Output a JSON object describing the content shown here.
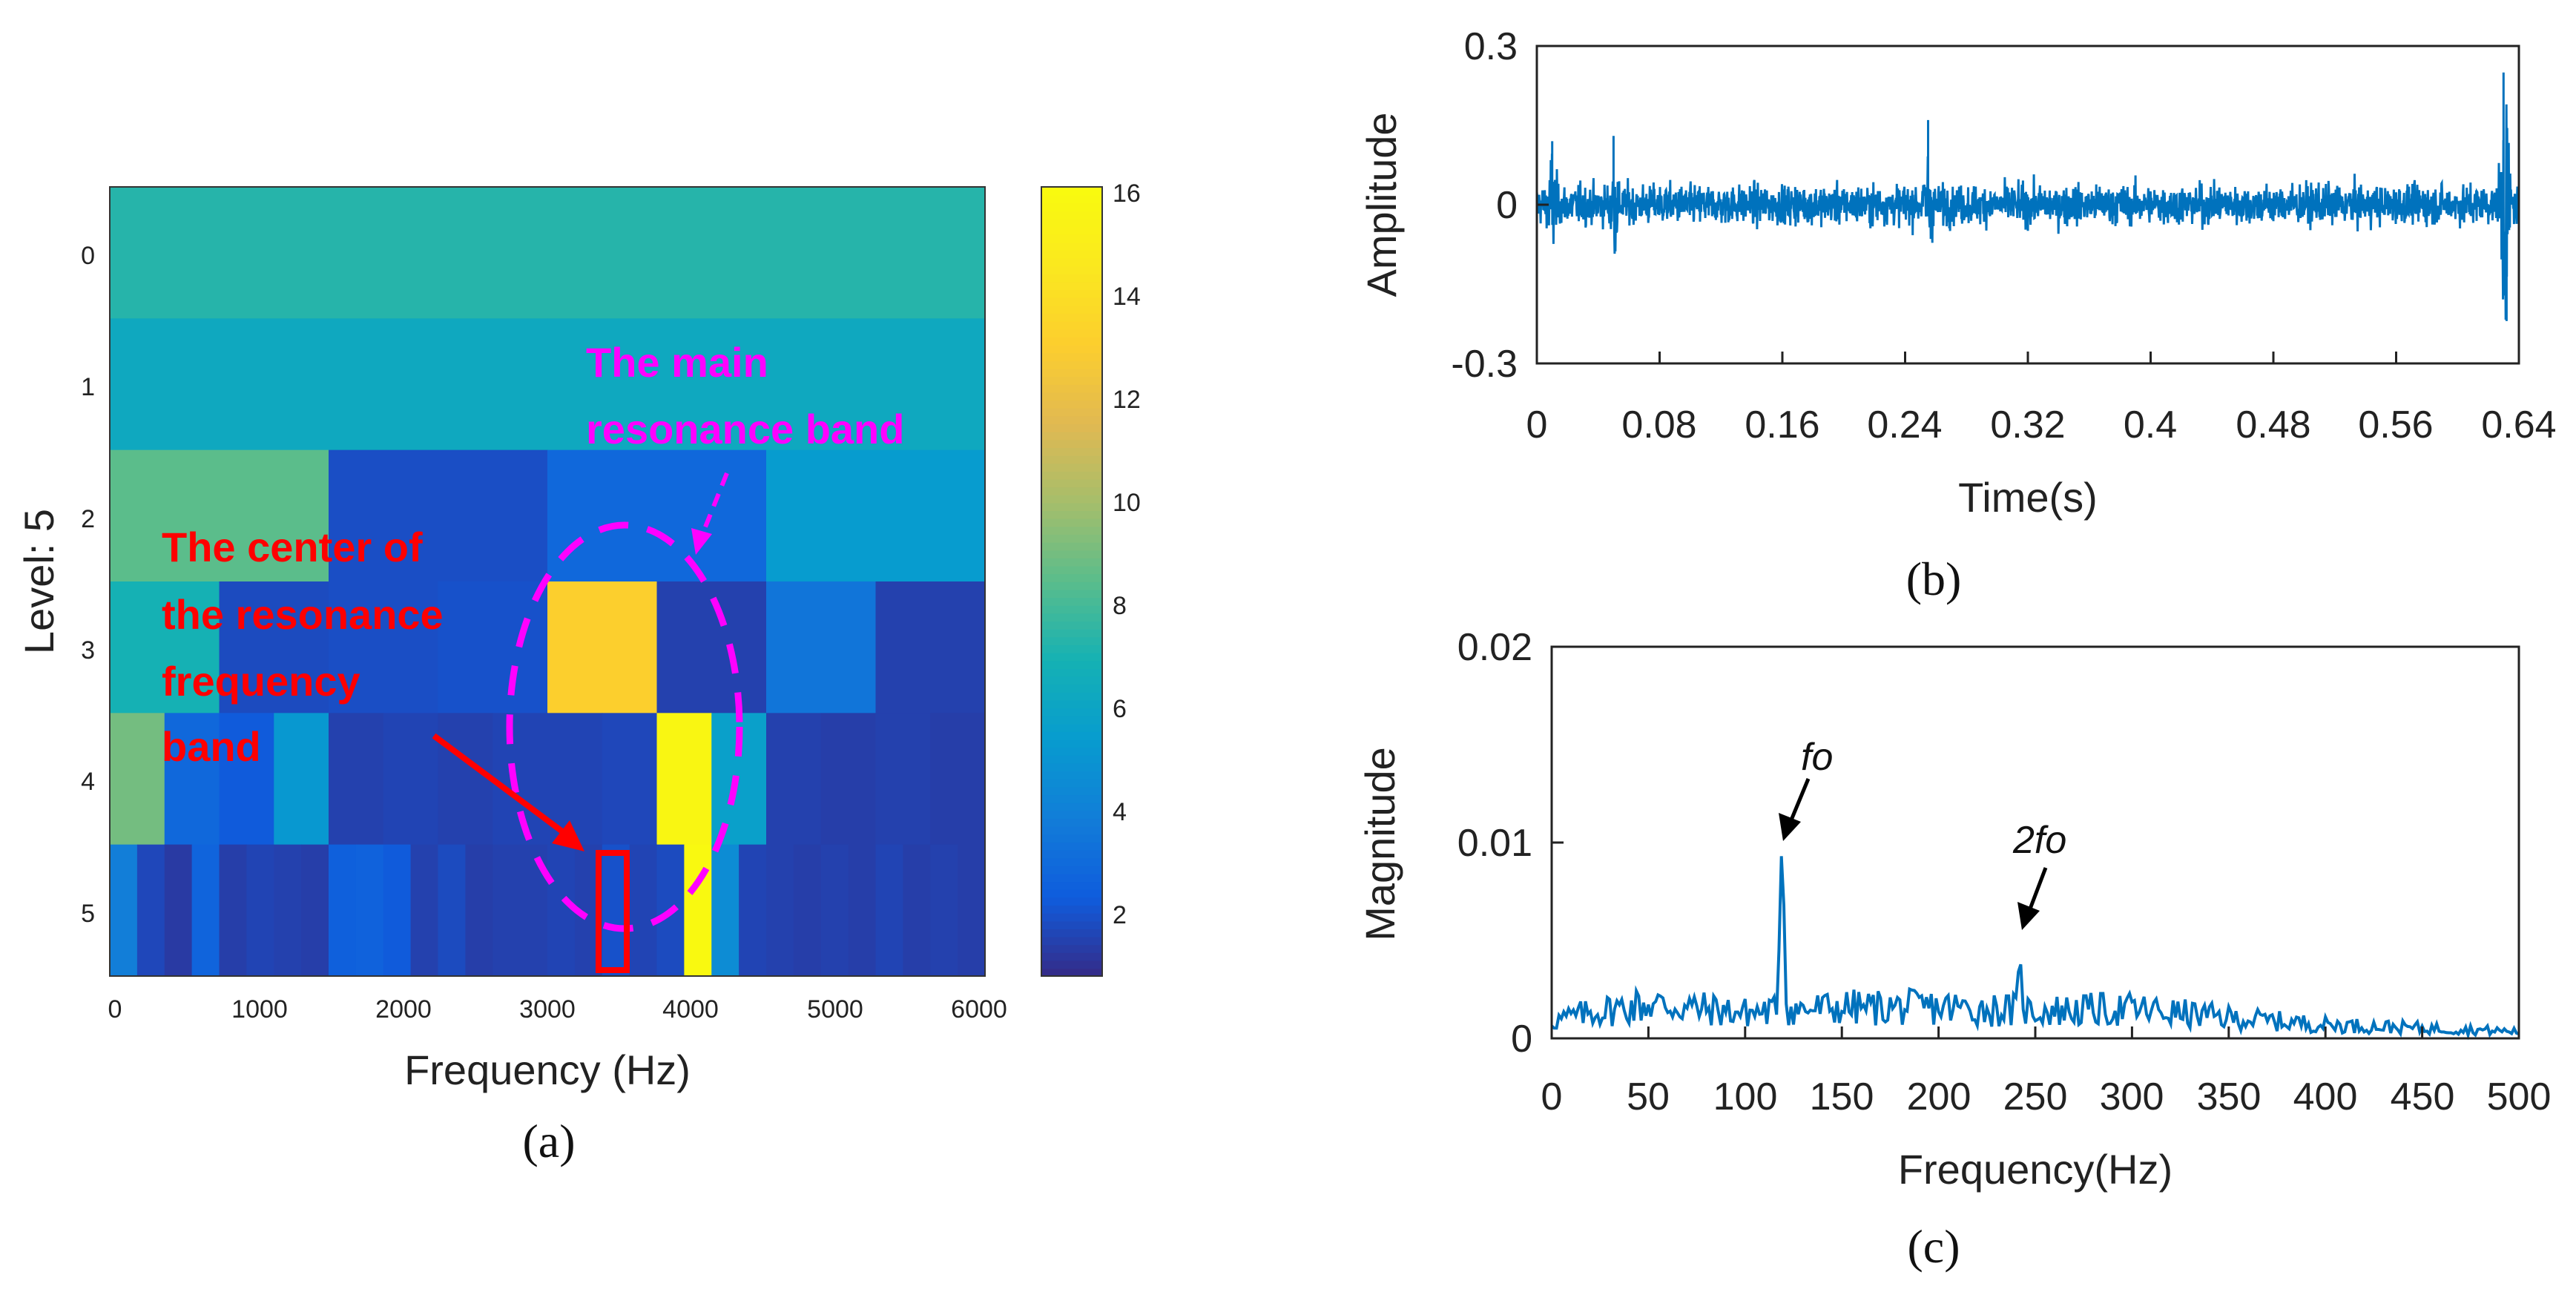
{
  "colors": {
    "signal": "#0072BD",
    "red": "#ff0000",
    "magenta": "#ff00ff",
    "axis": "#222222"
  },
  "chart_data": [
    {
      "panel": "(a)",
      "type": "heatmap",
      "title": "",
      "xlabel": "Frequency (Hz)",
      "ylabel": "Level: 5",
      "xlim": [
        -50,
        6050
      ],
      "xticks": [
        "0",
        "1000",
        "2000",
        "3000",
        "4000",
        "5000",
        "6000"
      ],
      "yticks": [
        "0",
        "1",
        "2",
        "3",
        "4",
        "5"
      ],
      "colorbar": {
        "min": 0.7,
        "max": 16,
        "ticks": [
          "2",
          "4",
          "6",
          "8",
          "10",
          "12",
          "14",
          "16"
        ]
      },
      "levels": [
        {
          "level": 0,
          "values": [
            7.2
          ]
        },
        {
          "level": 1,
          "values": [
            6.2,
            6.2
          ]
        },
        {
          "level": 2,
          "values": [
            8.4,
            1.8,
            2.8,
            5.3
          ]
        },
        {
          "level": 3,
          "values": [
            6.8,
            1.7,
            1.8,
            1.9,
            13.0,
            1.4,
            3.4,
            1.4
          ]
        },
        {
          "level": 4,
          "values": [
            8.9,
            2.8,
            2.2,
            5.1,
            1.4,
            1.5,
            1.4,
            1.5,
            1.5,
            1.6,
            15.6,
            5.6,
            1.4,
            1.3,
            1.4,
            1.3
          ]
        },
        {
          "level": 5,
          "values": [
            3.8,
            1.6,
            1.2,
            2.6,
            1.3,
            1.5,
            1.4,
            1.3,
            2.4,
            2.5,
            2.2,
            1.4,
            1.7,
            1.3,
            1.4,
            1.4,
            1.5,
            1.4,
            1.9,
            1.5,
            1.7,
            15.8,
            4.5,
            1.5,
            1.4,
            1.3,
            1.4,
            1.3,
            1.5,
            1.3,
            1.4,
            1.3
          ]
        }
      ],
      "annotations": {
        "center_label": [
          "The center of",
          "the resonance",
          "frequency",
          "band"
        ],
        "main_label": [
          "The main",
          "resonance band"
        ]
      }
    },
    {
      "panel": "(b)",
      "type": "line",
      "title": "",
      "xlabel": "Time(s)",
      "ylabel": "Amplitude",
      "xlim": [
        0,
        0.64
      ],
      "ylim": [
        -0.3,
        0.3
      ],
      "xticks": [
        "0",
        "0.08",
        "0.16",
        "0.24",
        "0.32",
        "0.4",
        "0.48",
        "0.56",
        "0.64"
      ],
      "yticks": [
        "-0.3",
        "0",
        "0.3"
      ],
      "description_points": [
        {
          "t": 0.01,
          "peak": 0.12
        },
        {
          "t": 0.05,
          "peak": 0.13
        },
        {
          "t": 0.255,
          "peak": 0.16
        },
        {
          "t": 0.63,
          "peak": 0.25
        },
        {
          "t": 0.632,
          "trough": -0.22
        }
      ]
    },
    {
      "panel": "(c)",
      "type": "line",
      "title": "",
      "xlabel": "Frequency(Hz)",
      "ylabel": "Magnitude",
      "xlim": [
        0,
        500
      ],
      "ylim": [
        0,
        0.02
      ],
      "xticks": [
        "0",
        "50",
        "100",
        "150",
        "200",
        "250",
        "300",
        "350",
        "400",
        "450",
        "500"
      ],
      "yticks": [
        "0",
        "0.01",
        "0.02"
      ],
      "peaks": [
        {
          "label": "fo",
          "x": 119,
          "y": 0.0095
        },
        {
          "label": "2fo",
          "x": 242,
          "y": 0.0041
        }
      ],
      "baseline": [
        [
          0,
          0.001
        ],
        [
          20,
          0.0015
        ],
        [
          50,
          0.002
        ],
        [
          100,
          0.0015
        ],
        [
          150,
          0.0018
        ],
        [
          200,
          0.0018
        ],
        [
          250,
          0.0016
        ],
        [
          300,
          0.0017
        ],
        [
          350,
          0.0012
        ],
        [
          400,
          0.0008
        ],
        [
          450,
          0.0006
        ],
        [
          500,
          0.0004
        ]
      ]
    }
  ]
}
